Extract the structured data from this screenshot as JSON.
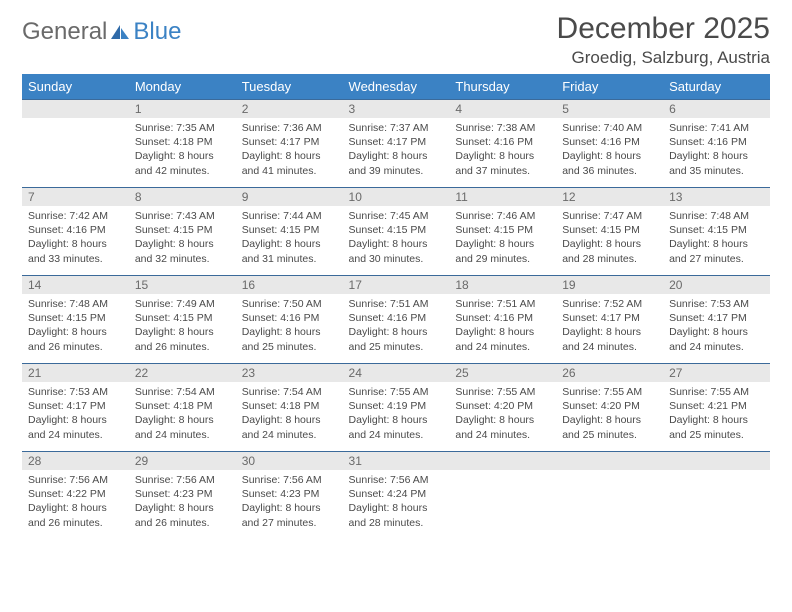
{
  "brand": {
    "text1": "General",
    "text2": "Blue"
  },
  "title": "December 2025",
  "location": "Groedig, Salzburg, Austria",
  "colors": {
    "header_bg": "#3b82c4",
    "header_text": "#ffffff",
    "band_bg": "#e8e8e8",
    "border": "#3b6a9a",
    "body_text": "#4a4a4a",
    "logo_gray": "#6a6a6a",
    "logo_blue": "#3b82c4"
  },
  "weekdays": [
    "Sunday",
    "Monday",
    "Tuesday",
    "Wednesday",
    "Thursday",
    "Friday",
    "Saturday"
  ],
  "weeks": [
    [
      null,
      {
        "n": "1",
        "sunrise": "7:35 AM",
        "sunset": "4:18 PM",
        "daylight": "8 hours and 42 minutes."
      },
      {
        "n": "2",
        "sunrise": "7:36 AM",
        "sunset": "4:17 PM",
        "daylight": "8 hours and 41 minutes."
      },
      {
        "n": "3",
        "sunrise": "7:37 AM",
        "sunset": "4:17 PM",
        "daylight": "8 hours and 39 minutes."
      },
      {
        "n": "4",
        "sunrise": "7:38 AM",
        "sunset": "4:16 PM",
        "daylight": "8 hours and 37 minutes."
      },
      {
        "n": "5",
        "sunrise": "7:40 AM",
        "sunset": "4:16 PM",
        "daylight": "8 hours and 36 minutes."
      },
      {
        "n": "6",
        "sunrise": "7:41 AM",
        "sunset": "4:16 PM",
        "daylight": "8 hours and 35 minutes."
      }
    ],
    [
      {
        "n": "7",
        "sunrise": "7:42 AM",
        "sunset": "4:16 PM",
        "daylight": "8 hours and 33 minutes."
      },
      {
        "n": "8",
        "sunrise": "7:43 AM",
        "sunset": "4:15 PM",
        "daylight": "8 hours and 32 minutes."
      },
      {
        "n": "9",
        "sunrise": "7:44 AM",
        "sunset": "4:15 PM",
        "daylight": "8 hours and 31 minutes."
      },
      {
        "n": "10",
        "sunrise": "7:45 AM",
        "sunset": "4:15 PM",
        "daylight": "8 hours and 30 minutes."
      },
      {
        "n": "11",
        "sunrise": "7:46 AM",
        "sunset": "4:15 PM",
        "daylight": "8 hours and 29 minutes."
      },
      {
        "n": "12",
        "sunrise": "7:47 AM",
        "sunset": "4:15 PM",
        "daylight": "8 hours and 28 minutes."
      },
      {
        "n": "13",
        "sunrise": "7:48 AM",
        "sunset": "4:15 PM",
        "daylight": "8 hours and 27 minutes."
      }
    ],
    [
      {
        "n": "14",
        "sunrise": "7:48 AM",
        "sunset": "4:15 PM",
        "daylight": "8 hours and 26 minutes."
      },
      {
        "n": "15",
        "sunrise": "7:49 AM",
        "sunset": "4:15 PM",
        "daylight": "8 hours and 26 minutes."
      },
      {
        "n": "16",
        "sunrise": "7:50 AM",
        "sunset": "4:16 PM",
        "daylight": "8 hours and 25 minutes."
      },
      {
        "n": "17",
        "sunrise": "7:51 AM",
        "sunset": "4:16 PM",
        "daylight": "8 hours and 25 minutes."
      },
      {
        "n": "18",
        "sunrise": "7:51 AM",
        "sunset": "4:16 PM",
        "daylight": "8 hours and 24 minutes."
      },
      {
        "n": "19",
        "sunrise": "7:52 AM",
        "sunset": "4:17 PM",
        "daylight": "8 hours and 24 minutes."
      },
      {
        "n": "20",
        "sunrise": "7:53 AM",
        "sunset": "4:17 PM",
        "daylight": "8 hours and 24 minutes."
      }
    ],
    [
      {
        "n": "21",
        "sunrise": "7:53 AM",
        "sunset": "4:17 PM",
        "daylight": "8 hours and 24 minutes."
      },
      {
        "n": "22",
        "sunrise": "7:54 AM",
        "sunset": "4:18 PM",
        "daylight": "8 hours and 24 minutes."
      },
      {
        "n": "23",
        "sunrise": "7:54 AM",
        "sunset": "4:18 PM",
        "daylight": "8 hours and 24 minutes."
      },
      {
        "n": "24",
        "sunrise": "7:55 AM",
        "sunset": "4:19 PM",
        "daylight": "8 hours and 24 minutes."
      },
      {
        "n": "25",
        "sunrise": "7:55 AM",
        "sunset": "4:20 PM",
        "daylight": "8 hours and 24 minutes."
      },
      {
        "n": "26",
        "sunrise": "7:55 AM",
        "sunset": "4:20 PM",
        "daylight": "8 hours and 25 minutes."
      },
      {
        "n": "27",
        "sunrise": "7:55 AM",
        "sunset": "4:21 PM",
        "daylight": "8 hours and 25 minutes."
      }
    ],
    [
      {
        "n": "28",
        "sunrise": "7:56 AM",
        "sunset": "4:22 PM",
        "daylight": "8 hours and 26 minutes."
      },
      {
        "n": "29",
        "sunrise": "7:56 AM",
        "sunset": "4:23 PM",
        "daylight": "8 hours and 26 minutes."
      },
      {
        "n": "30",
        "sunrise": "7:56 AM",
        "sunset": "4:23 PM",
        "daylight": "8 hours and 27 minutes."
      },
      {
        "n": "31",
        "sunrise": "7:56 AM",
        "sunset": "4:24 PM",
        "daylight": "8 hours and 28 minutes."
      },
      null,
      null,
      null
    ]
  ]
}
